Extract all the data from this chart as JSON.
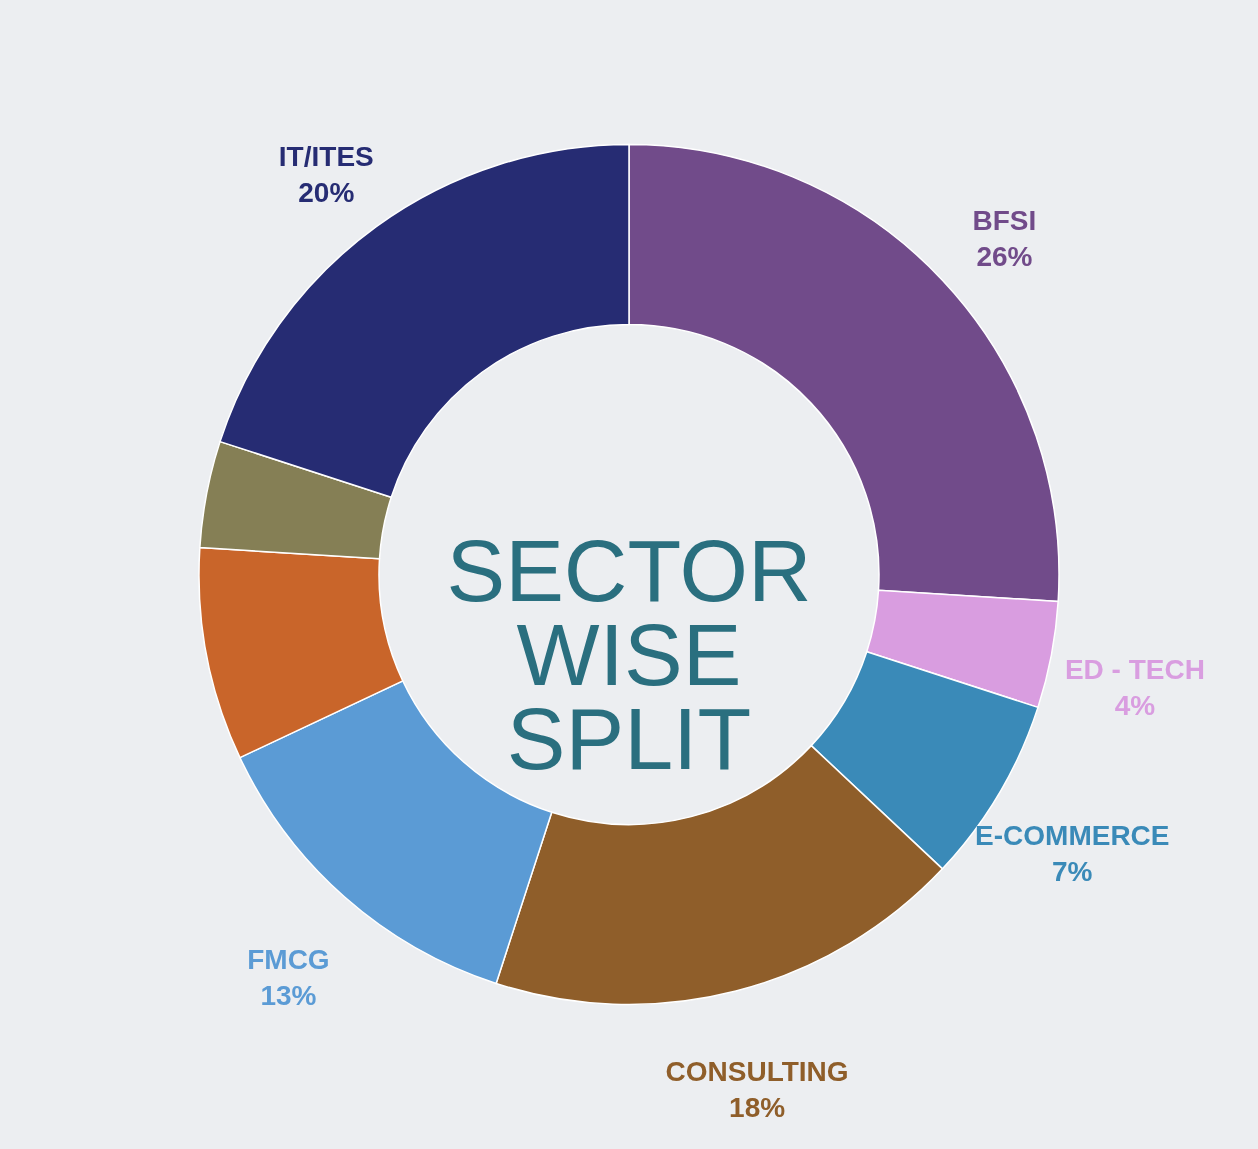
{
  "chart_data": {
    "type": "donut",
    "title": "SECTOR WISE SPLIT",
    "categories": [
      "BFSI",
      "ED - TECH",
      "E-COMMERCE",
      "CONSULTING",
      "FMCG",
      null,
      null,
      "IT/ITES"
    ],
    "values": [
      26,
      4,
      7,
      18,
      13,
      8,
      4,
      20
    ],
    "value_labels": [
      "26%",
      "4%",
      "7%",
      "18%",
      "13%",
      null,
      null,
      "20%"
    ],
    "colors": [
      "#714b8a",
      "#d99de0",
      "#3a8ab8",
      "#8f5e2a",
      "#5b9bd5",
      "#c9652a",
      "#857f55",
      "#262c73"
    ]
  }
}
